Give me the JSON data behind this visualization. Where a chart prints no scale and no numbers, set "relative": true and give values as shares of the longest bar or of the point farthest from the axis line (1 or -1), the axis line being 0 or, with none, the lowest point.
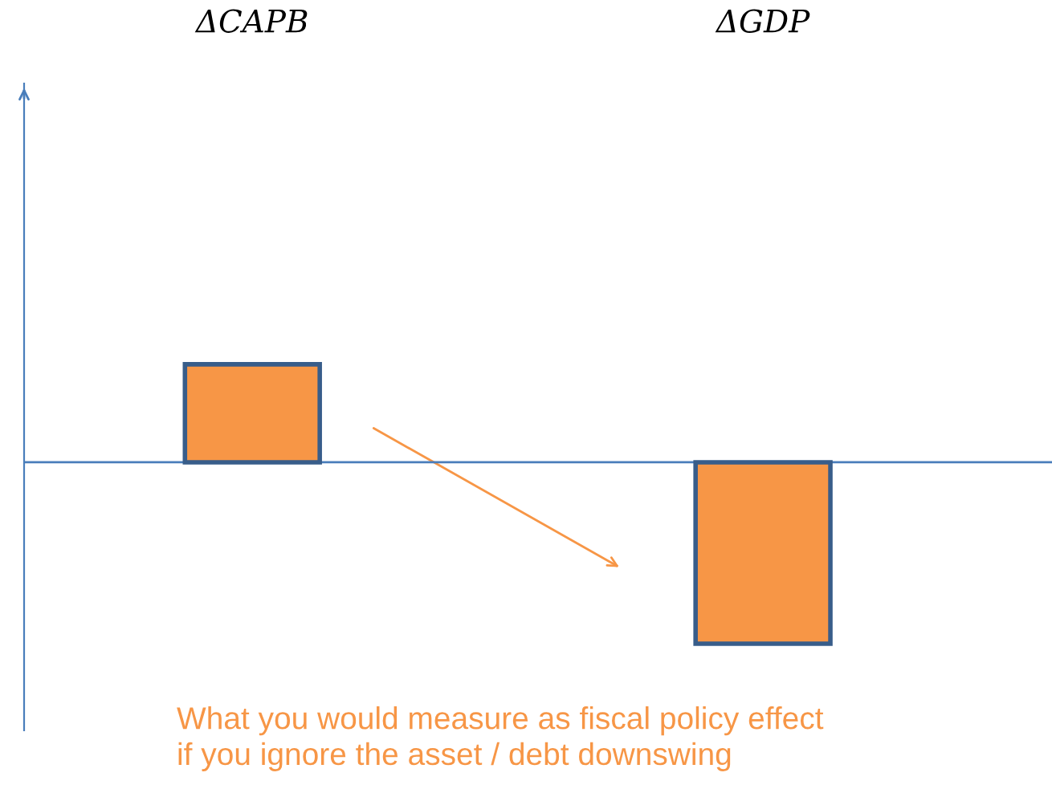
{
  "chart_data": {
    "type": "bar",
    "relative": true,
    "categories": [
      "ΔCAPB",
      "ΔGDP"
    ],
    "values": [
      0.54,
      -1
    ],
    "color": "#f79646",
    "annotations": [
      "What you would measure as fiscal policy effect\nif you ignore the asset / debt downswing"
    ],
    "ref_lines": [
      {
        "axis": "y",
        "value": 0,
        "color": "#4a7ebb"
      }
    ],
    "grid": false,
    "legend": false
  }
}
